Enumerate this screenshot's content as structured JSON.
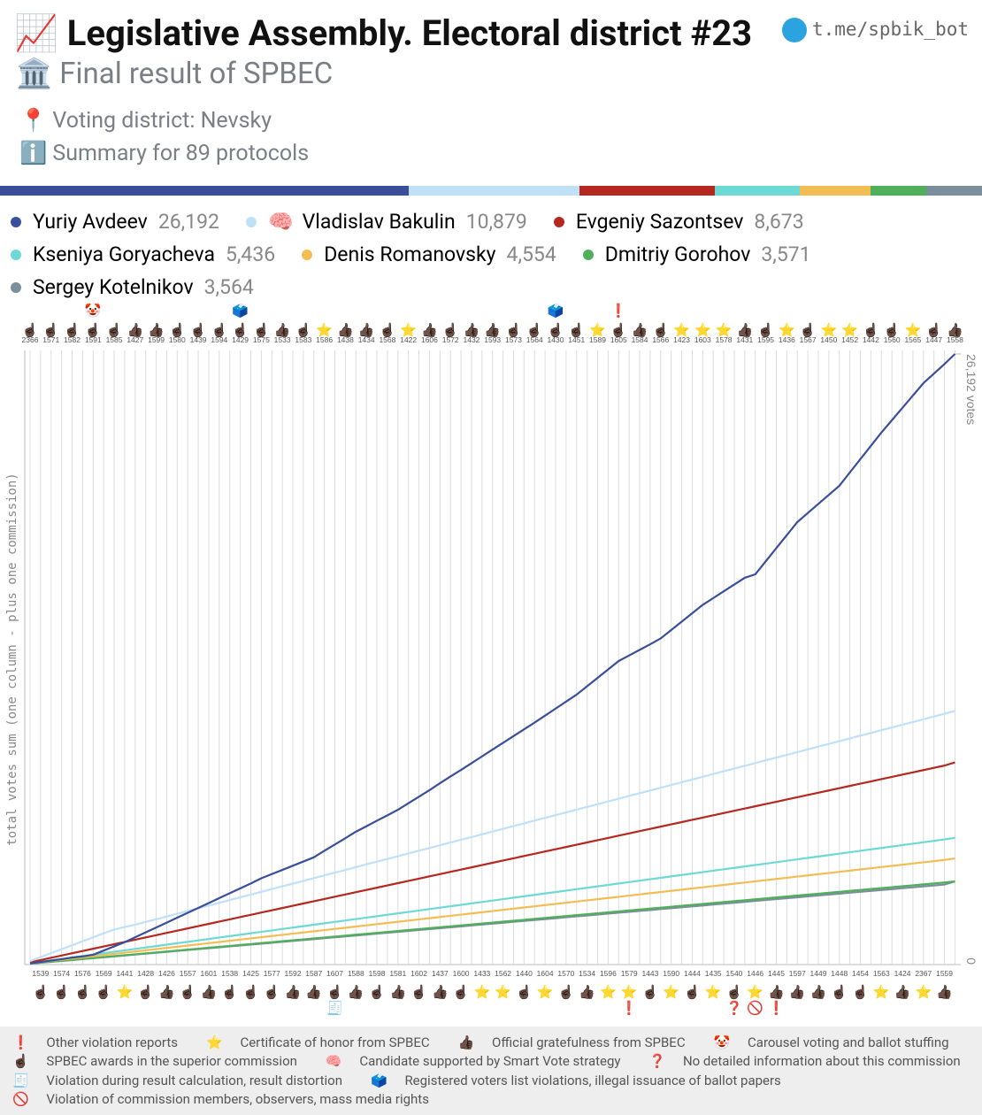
{
  "header": {
    "icon": "📈",
    "title": "Legislative Assembly. Electoral district #23",
    "subtitle_icon": "🏛️",
    "subtitle": "Final result of SPBEC",
    "district_icon": "📍",
    "district": "Voting district: Nevsky",
    "summary_icon": "ℹ️",
    "summary": "Summary for 89 protocols",
    "link": "t.me/spbik_bot"
  },
  "chart_data": {
    "type": "line",
    "y_label": "total votes sum (one column - plus one commission)",
    "ylim": [
      0,
      26192
    ],
    "yticks": [
      0,
      {
        "value": 26192,
        "label": "26,192 votes"
      }
    ],
    "grid": true,
    "categories": [
      "2366",
      "1539",
      "1571",
      "1574",
      "1582",
      "1576",
      "1591",
      "1569",
      "1585",
      "1441",
      "1427",
      "1428",
      "1599",
      "1426",
      "1580",
      "1557",
      "1439",
      "1601",
      "1594",
      "1538",
      "1429",
      "1425",
      "1575",
      "1577",
      "1533",
      "1592",
      "1583",
      "1587",
      "1586",
      "1607",
      "1438",
      "1588",
      "1434",
      "1598",
      "1568",
      "1581",
      "1422",
      "1602",
      "1606",
      "1437",
      "1572",
      "1600",
      "1432",
      "1433",
      "1593",
      "1562",
      "1573",
      "1440",
      "1564",
      "1604",
      "1430",
      "1570",
      "1451",
      "1534",
      "1589",
      "1596",
      "1605",
      "1579",
      "1584",
      "1443",
      "1566",
      "1590",
      "1423",
      "1444",
      "1603",
      "1435",
      "1578",
      "1540",
      "1431",
      "1446",
      "1595",
      "1445",
      "1436",
      "1597",
      "1567",
      "1449",
      "1450",
      "1448",
      "1452",
      "1454",
      "1442",
      "1563",
      "1560",
      "1424",
      "1565",
      "2367",
      "1447",
      "1559",
      "1558"
    ],
    "icons": [
      "☝🏿",
      "☝🏿",
      "☝🏿",
      "☝🏿",
      "☝🏿",
      "☝🏿",
      "☝🏿",
      "☝🏿",
      "☝🏿",
      "⭐",
      "👍🏿",
      "☝🏿",
      "👍🏿",
      "👍🏿",
      "☝🏿",
      "☝🏿",
      "☝🏿",
      "👍🏿",
      "☝🏿",
      "☝🏿",
      "☝🏿",
      "☝🏿",
      "☝🏿",
      "☝🏿",
      "👍🏿",
      "👍🏿",
      "☝🏿",
      "👍🏿",
      "⭐",
      "☝🏿",
      "👍🏿",
      "👍🏿",
      "👍🏿",
      "☝🏿",
      "☝🏿",
      "👍🏿",
      "⭐",
      "☝🏿",
      "👍🏿",
      "👍🏿",
      "☝🏿",
      "☝🏿",
      "👍🏿",
      "⭐",
      "👍🏿",
      "⭐",
      "☝🏿",
      "☝🏿",
      "☝🏿",
      "⭐",
      "☝🏿",
      "☝🏿",
      "☝🏿",
      "👍🏿",
      "⭐",
      "⭐",
      "☝🏿",
      "⭐",
      "👍🏿",
      "☝🏿",
      "☝🏿",
      "⭐",
      "⭐",
      "☝🏿",
      "⭐",
      "⭐",
      "⭐",
      "☝🏿",
      "👍🏿",
      "⭐",
      "☝🏿",
      "👍🏿",
      "⭐",
      "👍🏿",
      "☝🏿",
      "👍🏿",
      "⭐",
      "☝🏿",
      "⭐",
      "☝🏿",
      "☝🏿",
      "⭐",
      "☝🏿",
      "👍🏿",
      "⭐",
      "⭐",
      "☝🏿",
      "👍🏿",
      "👍🏿"
    ],
    "flags": [
      null,
      null,
      null,
      null,
      null,
      null,
      "🤡",
      null,
      null,
      null,
      null,
      null,
      null,
      null,
      null,
      null,
      null,
      null,
      null,
      null,
      "🗳️",
      null,
      null,
      null,
      null,
      null,
      null,
      null,
      null,
      "🧾",
      null,
      null,
      null,
      null,
      null,
      null,
      null,
      null,
      null,
      null,
      null,
      null,
      null,
      null,
      null,
      null,
      null,
      null,
      null,
      null,
      "🗳️",
      null,
      null,
      null,
      null,
      null,
      "❗",
      "❗",
      null,
      null,
      null,
      null,
      null,
      null,
      null,
      null,
      null,
      "❓",
      null,
      "🚫",
      null,
      "❗",
      null,
      null,
      null,
      null,
      null,
      null,
      null,
      null,
      null,
      null,
      null,
      null,
      null,
      null,
      null,
      null,
      null
    ],
    "series": [
      {
        "name": "Yuriy Avdeev",
        "color": "#3a4f9a",
        "total": 26192,
        "total_label": "26,192",
        "values": [
          50,
          110,
          170,
          230,
          300,
          350,
          420,
          600,
          780,
          960,
          1170,
          1380,
          1590,
          1800,
          2010,
          2220,
          2430,
          2640,
          2850,
          3060,
          3270,
          3480,
          3700,
          3880,
          4060,
          4240,
          4420,
          4600,
          4880,
          5150,
          5420,
          5700,
          5930,
          6170,
          6400,
          6640,
          6920,
          7200,
          7480,
          7780,
          8070,
          8350,
          8640,
          8930,
          9220,
          9510,
          9800,
          10090,
          10380,
          10680,
          10980,
          11280,
          11580,
          11940,
          12300,
          12660,
          13020,
          13260,
          13500,
          13740,
          13990,
          14350,
          14710,
          15070,
          15430,
          15720,
          16010,
          16300,
          16590,
          16740,
          17300,
          17860,
          18420,
          18980,
          19370,
          19760,
          20150,
          20540,
          21110,
          21680,
          22250,
          22820,
          23350,
          23880,
          24410,
          24940,
          25350,
          25760,
          26192
        ]
      },
      {
        "name": "Vladislav Bakulin",
        "badge": "🧠",
        "color": "#bfe0f7",
        "total": 10879,
        "total_label": "10,879",
        "values": [
          150,
          320,
          490,
          660,
          830,
          1000,
          1170,
          1340,
          1500,
          1610,
          1710,
          1828,
          1945,
          2063,
          2180,
          2298,
          2415,
          2533,
          2650,
          2768,
          2885,
          3003,
          3120,
          3238,
          3355,
          3473,
          3590,
          3708,
          3825,
          3943,
          4060,
          4178,
          4295,
          4413,
          4530,
          4648,
          4765,
          4883,
          5000,
          5118,
          5235,
          5353,
          5470,
          5588,
          5705,
          5823,
          5940,
          6058,
          6175,
          6293,
          6410,
          6528,
          6645,
          6763,
          6880,
          6998,
          7115,
          7233,
          7350,
          7468,
          7585,
          7703,
          7820,
          7938,
          8055,
          8173,
          8290,
          8408,
          8525,
          8643,
          8760,
          8878,
          8995,
          9113,
          9230,
          9348,
          9465,
          9583,
          9700,
          9818,
          9935,
          10053,
          10170,
          10288,
          10405,
          10523,
          10640,
          10758,
          10879
        ]
      },
      {
        "name": "Evgeniy Sazontsev",
        "color": "#b5271f",
        "total": 8673,
        "total_label": "8,673",
        "values": [
          97,
          194,
          291,
          388,
          485,
          582,
          679,
          776,
          873,
          970,
          1067,
          1164,
          1261,
          1358,
          1455,
          1552,
          1649,
          1746,
          1843,
          1940,
          2037,
          2134,
          2231,
          2328,
          2425,
          2522,
          2619,
          2716,
          2813,
          2910,
          3007,
          3104,
          3201,
          3298,
          3395,
          3492,
          3589,
          3686,
          3783,
          3880,
          3977,
          4074,
          4171,
          4268,
          4365,
          4462,
          4559,
          4656,
          4753,
          4850,
          4947,
          5044,
          5141,
          5238,
          5335,
          5432,
          5529,
          5626,
          5723,
          5820,
          5917,
          6014,
          6111,
          6208,
          6305,
          6402,
          6499,
          6596,
          6693,
          6790,
          6887,
          6984,
          7081,
          7178,
          7275,
          7372,
          7469,
          7566,
          7663,
          7760,
          7857,
          7954,
          8051,
          8148,
          8245,
          8342,
          8439,
          8536,
          8673
        ]
      },
      {
        "name": "Kseniya Goryacheva",
        "color": "#6dd9d5",
        "total": 5436,
        "total_label": "5,436",
        "values": [
          61,
          122,
          183,
          244,
          305,
          366,
          427,
          488,
          549,
          610,
          671,
          732,
          793,
          854,
          915,
          976,
          1037,
          1098,
          1159,
          1220,
          1281,
          1342,
          1403,
          1464,
          1525,
          1586,
          1647,
          1708,
          1769,
          1830,
          1891,
          1952,
          2013,
          2074,
          2135,
          2196,
          2257,
          2318,
          2379,
          2440,
          2501,
          2562,
          2623,
          2684,
          2745,
          2806,
          2867,
          2928,
          2989,
          3050,
          3111,
          3172,
          3233,
          3294,
          3355,
          3416,
          3477,
          3538,
          3599,
          3660,
          3721,
          3782,
          3843,
          3904,
          3965,
          4026,
          4087,
          4148,
          4209,
          4270,
          4331,
          4392,
          4453,
          4514,
          4575,
          4636,
          4697,
          4758,
          4819,
          4880,
          4941,
          5002,
          5063,
          5124,
          5185,
          5246,
          5307,
          5368,
          5436
        ]
      },
      {
        "name": "Denis Romanovsky",
        "color": "#f3bd55",
        "total": 4554,
        "total_label": "4,554",
        "values": [
          51,
          102,
          153,
          204,
          255,
          306,
          357,
          408,
          459,
          510,
          561,
          612,
          663,
          714,
          765,
          816,
          867,
          918,
          969,
          1020,
          1071,
          1122,
          1173,
          1224,
          1275,
          1326,
          1377,
          1428,
          1479,
          1530,
          1581,
          1632,
          1683,
          1734,
          1785,
          1836,
          1887,
          1938,
          1989,
          2040,
          2091,
          2142,
          2193,
          2244,
          2295,
          2346,
          2397,
          2448,
          2499,
          2550,
          2601,
          2652,
          2703,
          2754,
          2805,
          2856,
          2907,
          2958,
          3009,
          3060,
          3111,
          3162,
          3213,
          3264,
          3315,
          3366,
          3417,
          3468,
          3519,
          3570,
          3621,
          3672,
          3723,
          3774,
          3825,
          3876,
          3927,
          3978,
          4029,
          4080,
          4131,
          4182,
          4233,
          4284,
          4335,
          4386,
          4437,
          4488,
          4554
        ]
      },
      {
        "name": "Dmitriy Gorohov",
        "color": "#4faf5a",
        "total": 3571,
        "total_label": "3,571",
        "values": [
          40,
          80,
          120,
          160,
          200,
          240,
          280,
          320,
          360,
          400,
          440,
          480,
          520,
          560,
          600,
          640,
          680,
          720,
          760,
          800,
          840,
          880,
          920,
          960,
          1000,
          1040,
          1080,
          1120,
          1160,
          1200,
          1240,
          1280,
          1320,
          1360,
          1400,
          1440,
          1480,
          1520,
          1560,
          1600,
          1640,
          1680,
          1720,
          1760,
          1800,
          1840,
          1880,
          1920,
          1960,
          2000,
          2040,
          2080,
          2120,
          2160,
          2200,
          2240,
          2280,
          2320,
          2360,
          2400,
          2440,
          2480,
          2520,
          2560,
          2600,
          2640,
          2680,
          2720,
          2760,
          2800,
          2840,
          2880,
          2920,
          2960,
          3000,
          3040,
          3080,
          3120,
          3160,
          3200,
          3240,
          3280,
          3320,
          3360,
          3400,
          3440,
          3480,
          3520,
          3571
        ]
      },
      {
        "name": "Sergey Kotelnikov",
        "color": "#7b8e9c",
        "total": 3564,
        "total_label": "3,564",
        "values": [
          39,
          78,
          117,
          156,
          195,
          234,
          273,
          312,
          351,
          390,
          429,
          468,
          507,
          546,
          585,
          624,
          663,
          702,
          741,
          780,
          819,
          858,
          897,
          936,
          975,
          1014,
          1053,
          1092,
          1131,
          1170,
          1209,
          1248,
          1287,
          1326,
          1365,
          1404,
          1443,
          1482,
          1521,
          1560,
          1599,
          1638,
          1677,
          1716,
          1755,
          1794,
          1833,
          1872,
          1911,
          1950,
          1989,
          2028,
          2067,
          2106,
          2145,
          2184,
          2223,
          2262,
          2301,
          2340,
          2379,
          2418,
          2457,
          2496,
          2535,
          2574,
          2613,
          2652,
          2691,
          2730,
          2769,
          2808,
          2847,
          2886,
          2925,
          2964,
          3003,
          3042,
          3081,
          3120,
          3159,
          3198,
          3237,
          3276,
          3315,
          3354,
          3393,
          3432,
          3564
        ]
      }
    ],
    "marker_legend": [
      [
        {
          "icon": "❗",
          "text": "Other violation reports"
        },
        {
          "icon": "⭐",
          "text": "Certificate of honor from SPBEC"
        },
        {
          "icon": "👍🏿",
          "text": "Official gratefulness from SPBEC"
        },
        {
          "icon": "🤡",
          "text": "Carousel voting and ballot stuffing"
        }
      ],
      [
        {
          "icon": "☝🏿",
          "text": "SPBEC awards in the superior commission"
        },
        {
          "icon": "🧠",
          "text": "Candidate supported by Smart Vote strategy"
        },
        {
          "icon": "❓",
          "text": "No detailed information about this commission"
        }
      ],
      [
        {
          "icon": "🧾",
          "text": "Violation during result calculation, result distortion"
        },
        {
          "icon": "🗳️",
          "text": "Registered voters list violations, illegal issuance of ballot papers"
        }
      ],
      [
        {
          "icon": "🚫",
          "text": "Violation of commission members, observers, mass media rights"
        }
      ]
    ]
  }
}
